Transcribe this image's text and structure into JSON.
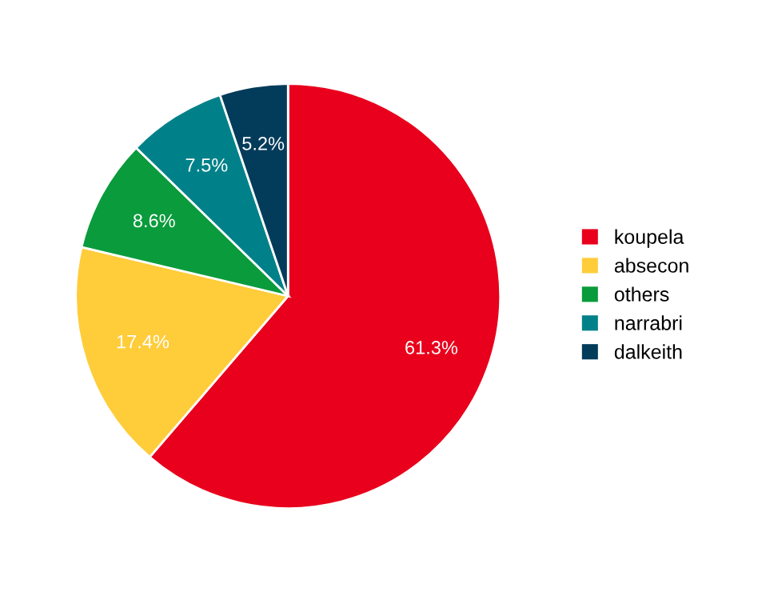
{
  "chart_data": {
    "type": "pie",
    "categories": [
      "koupela",
      "absecon",
      "others",
      "narrabri",
      "dalkeith"
    ],
    "values": [
      61.3,
      17.4,
      8.6,
      7.5,
      5.2
    ],
    "value_labels": [
      "61.3%",
      "17.4%",
      "8.6%",
      "7.5%",
      "5.2%"
    ],
    "colors": [
      "#e8001c",
      "#ffcc3a",
      "#0a9b3c",
      "#008189",
      "#033c5a"
    ],
    "legend": "right"
  }
}
